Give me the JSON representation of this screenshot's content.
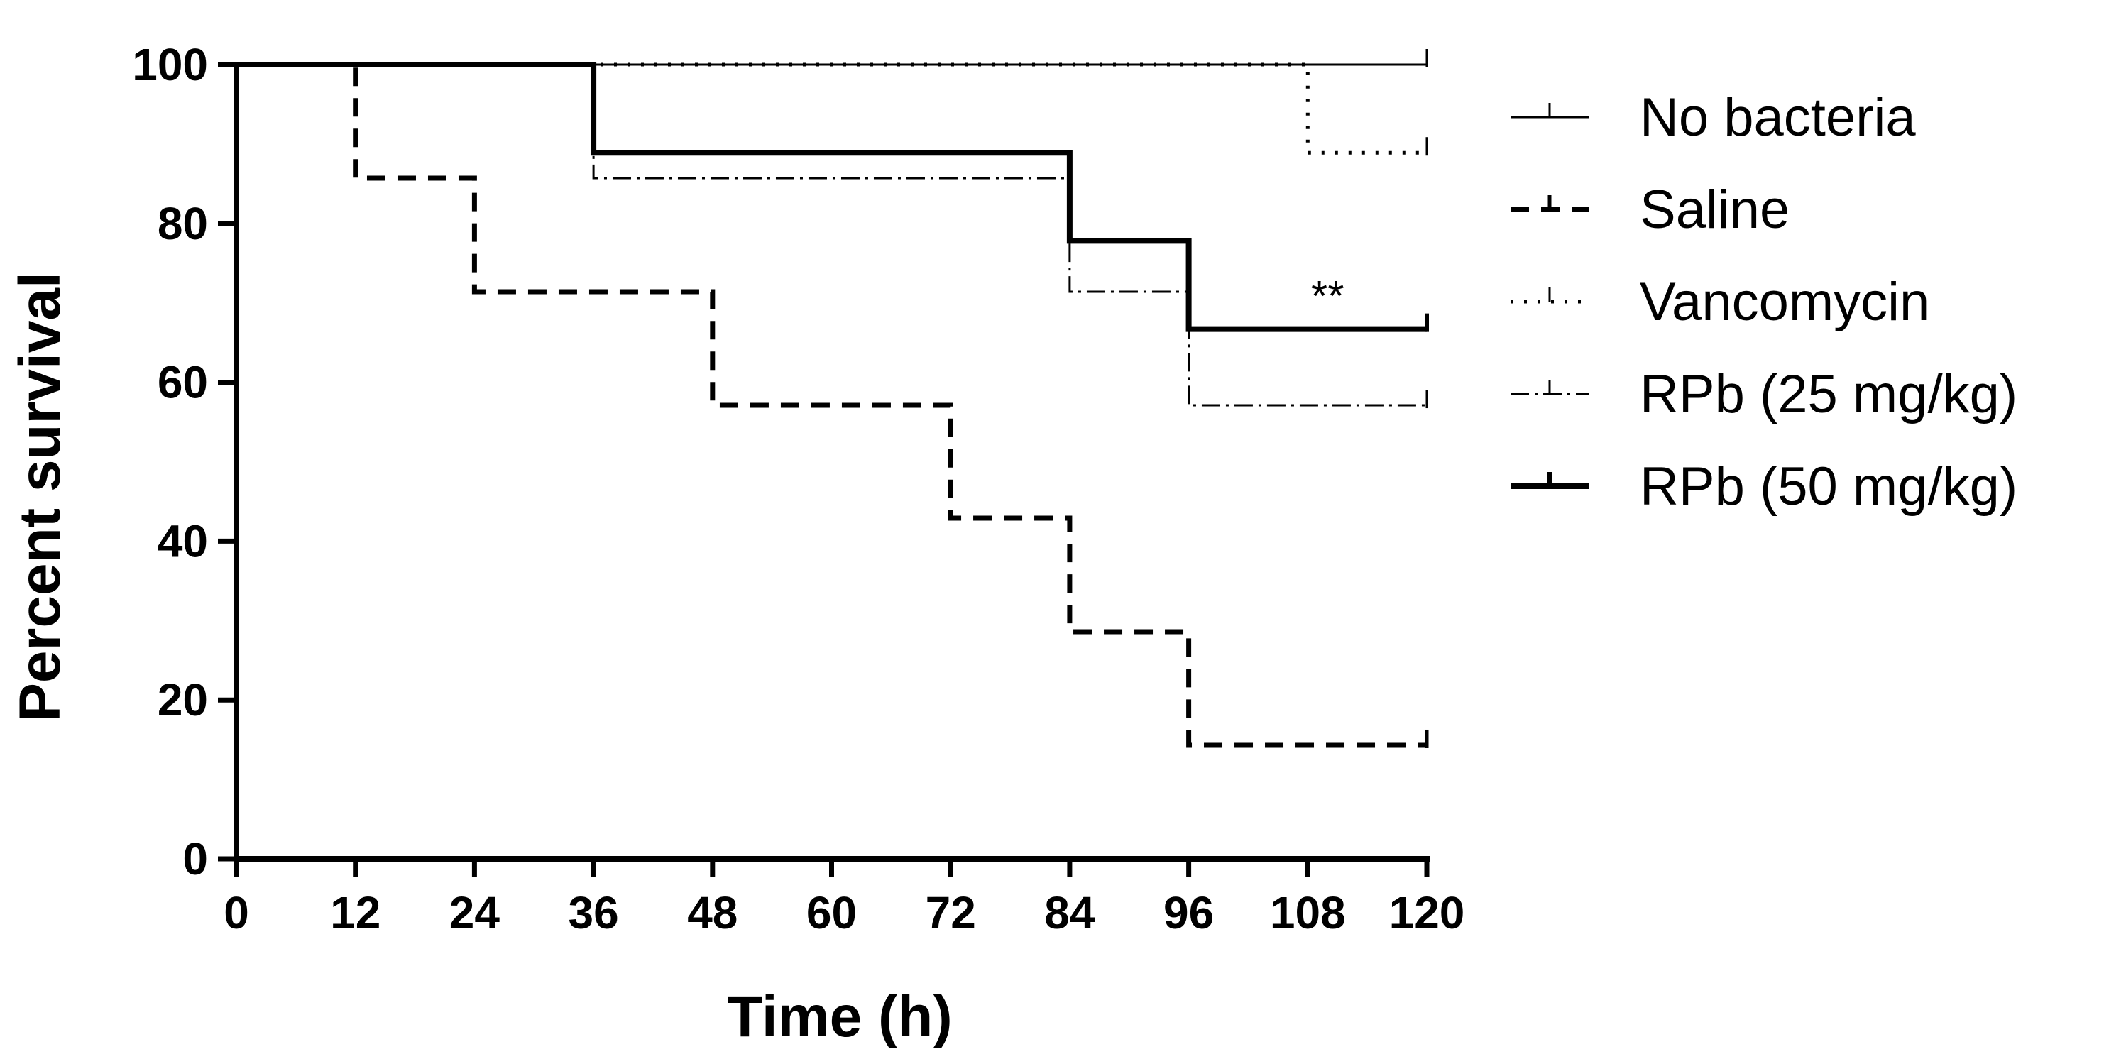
{
  "chart_data": {
    "type": "line",
    "subtype": "kaplan-meier survival",
    "title": "",
    "xlabel": "Time (h)",
    "ylabel": "Percent survival",
    "xlim": [
      0,
      120
    ],
    "ylim": [
      0,
      100
    ],
    "xticks": [
      0,
      12,
      24,
      36,
      48,
      60,
      72,
      84,
      96,
      108,
      120
    ],
    "yticks": [
      0,
      20,
      40,
      60,
      80,
      100
    ],
    "legend_position": "right",
    "annotations": [
      {
        "text": "**",
        "x": 110,
        "y": 71
      }
    ],
    "series": [
      {
        "name": "No bacteria",
        "style": "thin-solid",
        "steps": [
          [
            0,
            100
          ],
          [
            120,
            100
          ]
        ]
      },
      {
        "name": "Saline",
        "style": "dashed",
        "steps": [
          [
            0,
            100
          ],
          [
            12,
            85.7
          ],
          [
            24,
            71.4
          ],
          [
            48,
            57.1
          ],
          [
            72,
            42.9
          ],
          [
            84,
            28.6
          ],
          [
            96,
            14.3
          ],
          [
            120,
            14.3
          ]
        ]
      },
      {
        "name": "Vancomycin",
        "style": "dotted",
        "steps": [
          [
            0,
            100
          ],
          [
            108,
            88.9
          ],
          [
            120,
            88.9
          ]
        ]
      },
      {
        "name": "RPb (25 mg/kg)",
        "style": "dash-dot",
        "steps": [
          [
            0,
            100
          ],
          [
            36,
            85.7
          ],
          [
            84,
            71.4
          ],
          [
            96,
            57.1
          ],
          [
            120,
            57.1
          ]
        ]
      },
      {
        "name": "RPb (50 mg/kg)",
        "style": "thick-solid",
        "steps": [
          [
            0,
            100
          ],
          [
            36,
            88.9
          ],
          [
            84,
            77.8
          ],
          [
            96,
            66.7
          ],
          [
            120,
            66.7
          ]
        ]
      }
    ]
  }
}
